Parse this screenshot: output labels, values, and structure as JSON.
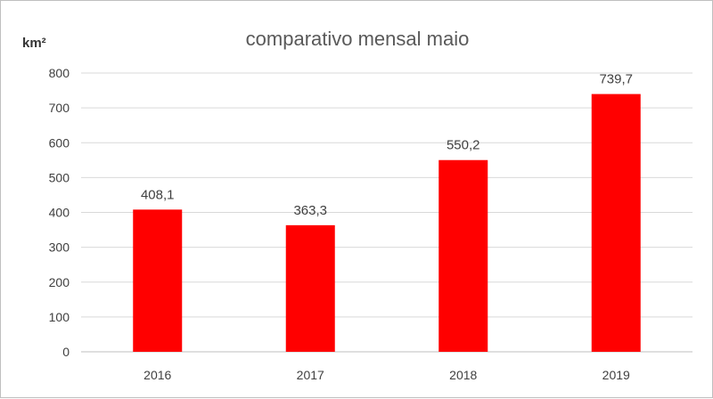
{
  "chart_data": {
    "type": "bar",
    "title": "comparativo mensal maio",
    "xlabel": "",
    "ylabel": "km²",
    "categories": [
      "2016",
      "2017",
      "2018",
      "2019"
    ],
    "values": [
      408.1,
      363.3,
      550.2,
      739.7
    ],
    "data_labels": [
      "408,1",
      "363,3",
      "550,2",
      "739,7"
    ],
    "ylim": [
      0,
      800
    ],
    "yticks": [
      0,
      100,
      200,
      300,
      400,
      500,
      600,
      700,
      800
    ],
    "grid": true,
    "legend": "none",
    "bar_color": "#ff0000"
  }
}
